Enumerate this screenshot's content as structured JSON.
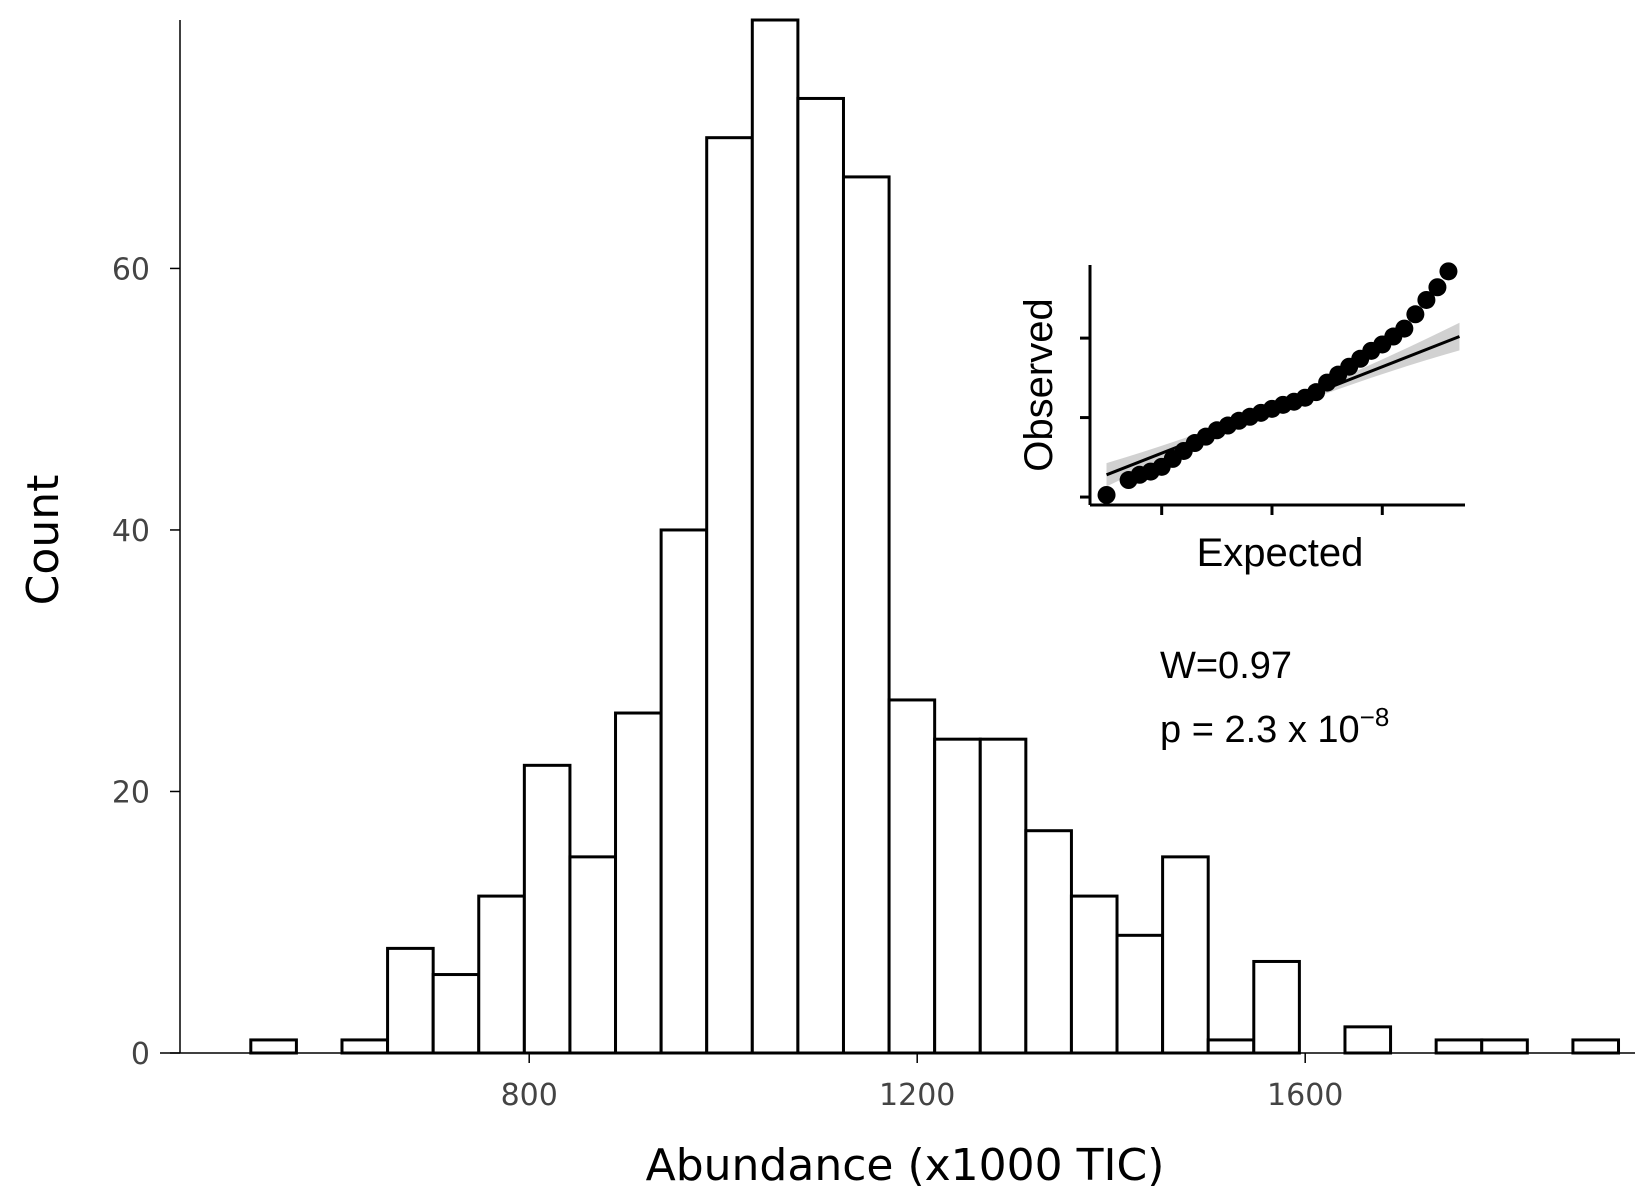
{
  "chart_data": [
    {
      "type": "histogram",
      "xlabel": "Abundance (x1000 TIC)",
      "ylabel": "Count",
      "xlim": [
        440,
        1940
      ],
      "ylim": [
        0,
        79
      ],
      "x_ticks": [
        800,
        1200,
        1600
      ],
      "y_ticks": [
        0,
        20,
        40,
        60
      ],
      "bin_width": 47.0,
      "bin_starts": [
        513,
        607,
        654,
        701,
        748,
        795,
        842,
        889,
        936,
        983,
        1030,
        1077,
        1124,
        1171,
        1218,
        1265,
        1312,
        1359,
        1406,
        1453,
        1500,
        1547,
        1641,
        1735,
        1782,
        1876
      ],
      "counts": [
        1,
        1,
        8,
        6,
        12,
        22,
        15,
        26,
        40,
        70,
        79,
        73,
        67,
        27,
        24,
        24,
        17,
        12,
        9,
        15,
        1,
        7,
        2,
        1,
        1,
        1
      ],
      "bar_fill": "#ffffff",
      "bar_stroke": "#000000",
      "grid": false
    },
    {
      "type": "scatter",
      "name": "inset-qq-plot",
      "xlabel": "Expected",
      "ylabel": "Observed",
      "xlim": [
        -3.3,
        3.5
      ],
      "ylim": [
        450,
        1960
      ],
      "x_ticks": [
        -2,
        0,
        2
      ],
      "y_ticks": [
        500,
        1000,
        1500
      ],
      "points": [
        [
          -3.0,
          513
        ],
        [
          -2.6,
          607
        ],
        [
          -2.4,
          640
        ],
        [
          -2.2,
          660
        ],
        [
          -2.0,
          690
        ],
        [
          -1.8,
          740
        ],
        [
          -1.6,
          790
        ],
        [
          -1.4,
          840
        ],
        [
          -1.2,
          880
        ],
        [
          -1.0,
          920
        ],
        [
          -0.8,
          950
        ],
        [
          -0.6,
          980
        ],
        [
          -0.4,
          1005
        ],
        [
          -0.2,
          1030
        ],
        [
          0.0,
          1055
        ],
        [
          0.2,
          1080
        ],
        [
          0.4,
          1100
        ],
        [
          0.6,
          1125
        ],
        [
          0.8,
          1160
        ],
        [
          1.0,
          1220
        ],
        [
          1.2,
          1270
        ],
        [
          1.4,
          1320
        ],
        [
          1.6,
          1370
        ],
        [
          1.8,
          1420
        ],
        [
          2.0,
          1460
        ],
        [
          2.2,
          1510
        ],
        [
          2.4,
          1560
        ],
        [
          2.6,
          1650
        ],
        [
          2.8,
          1740
        ],
        [
          3.0,
          1820
        ],
        [
          3.2,
          1920
        ]
      ],
      "fit_line": [
        [
          -3.0,
          640
        ],
        [
          3.4,
          1510
        ]
      ],
      "ci_band_color": "#cccccc",
      "annotation": {
        "line1": "W=0.97",
        "line2_prefix": "p = 2.3 x 10",
        "line2_exponent": "−8"
      }
    }
  ]
}
